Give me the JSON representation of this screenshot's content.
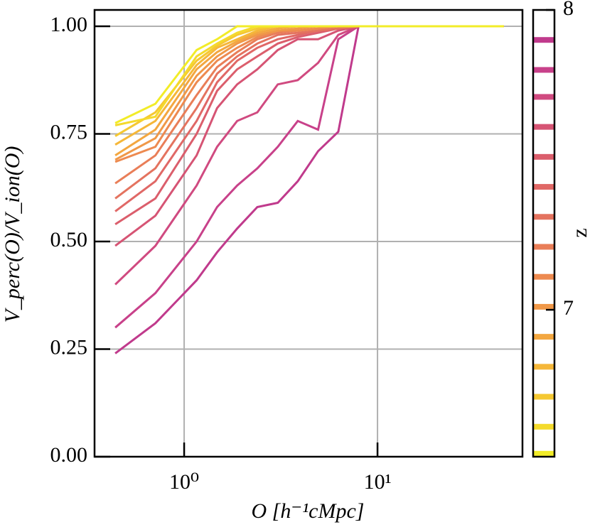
{
  "chart_data": {
    "type": "line",
    "xlabel": "O [h⁻¹cMpc]",
    "ylabel": "V_perc(O)/V_ion(O)",
    "x": [
      0.44,
      0.71,
      1.16,
      1.48,
      1.88,
      2.39,
      3.05,
      3.87,
      4.93,
      6.27,
      7.98,
      45
    ],
    "xlog": true,
    "xlim": [
      0.344,
      56.2
    ],
    "xticks": [
      {
        "value": 1,
        "label": "10⁰"
      },
      {
        "value": 10,
        "label": "10¹"
      }
    ],
    "ylim": [
      0,
      1.038
    ],
    "yticks": [
      {
        "value": 0,
        "label": "0.00"
      },
      {
        "value": 0.25,
        "label": "0.25"
      },
      {
        "value": 0.5,
        "label": "0.50"
      },
      {
        "value": 0.75,
        "label": "0.75"
      },
      {
        "value": 1,
        "label": "1.00"
      }
    ],
    "grid": true,
    "colorbar": {
      "label": "z",
      "clim": [
        6.51,
        8.0
      ],
      "ticks": [
        7,
        8
      ]
    },
    "series": [
      {
        "z": 7.9,
        "color": "#c03a8c",
        "values": [
          0.24,
          0.31,
          0.41,
          0.475,
          0.53,
          0.58,
          0.59,
          0.64,
          0.71,
          0.755,
          1.0,
          1.0
        ]
      },
      {
        "z": 7.8,
        "color": "#c8418a",
        "values": [
          0.3,
          0.38,
          0.5,
          0.58,
          0.63,
          0.67,
          0.72,
          0.78,
          0.76,
          0.97,
          1.0,
          1.0
        ]
      },
      {
        "z": 7.71,
        "color": "#d04a80",
        "values": [
          0.4,
          0.49,
          0.63,
          0.72,
          0.78,
          0.8,
          0.865,
          0.875,
          0.915,
          0.98,
          1.0,
          1.0
        ]
      },
      {
        "z": 7.61,
        "color": "#d65474",
        "values": [
          0.49,
          0.56,
          0.7,
          0.81,
          0.865,
          0.9,
          0.945,
          0.97,
          0.97,
          0.99,
          1.0,
          1.0
        ]
      },
      {
        "z": 7.51,
        "color": "#db5e6c",
        "values": [
          0.54,
          0.6,
          0.75,
          0.85,
          0.9,
          0.93,
          0.96,
          0.975,
          0.985,
          0.995,
          1.0,
          1.0
        ]
      },
      {
        "z": 7.41,
        "color": "#e06866",
        "values": [
          0.57,
          0.64,
          0.78,
          0.87,
          0.92,
          0.95,
          0.97,
          0.98,
          0.99,
          0.995,
          1.0,
          1.0
        ]
      },
      {
        "z": 7.31,
        "color": "#e4735f",
        "values": [
          0.6,
          0.67,
          0.81,
          0.89,
          0.93,
          0.96,
          0.98,
          0.985,
          0.99,
          0.995,
          1.0,
          1.0
        ]
      },
      {
        "z": 7.21,
        "color": "#e97e58",
        "values": [
          0.635,
          0.7,
          0.84,
          0.905,
          0.94,
          0.97,
          0.985,
          0.99,
          0.995,
          1.0,
          1.0,
          1.0
        ]
      },
      {
        "z": 7.11,
        "color": "#ed8a50",
        "values": [
          0.685,
          0.72,
          0.87,
          0.92,
          0.95,
          0.975,
          0.99,
          0.99,
          0.995,
          1.0,
          1.0,
          1.0
        ]
      },
      {
        "z": 7.01,
        "color": "#f09848",
        "values": [
          0.69,
          0.74,
          0.885,
          0.93,
          0.96,
          0.98,
          0.99,
          0.995,
          1.0,
          1.0,
          1.0,
          1.0
        ]
      },
      {
        "z": 6.91,
        "color": "#f3a740",
        "values": [
          0.7,
          0.76,
          0.9,
          0.94,
          0.965,
          0.985,
          0.995,
          1.0,
          1.0,
          1.0,
          1.0,
          1.0
        ]
      },
      {
        "z": 6.81,
        "color": "#f5b739",
        "values": [
          0.725,
          0.78,
          0.91,
          0.95,
          0.97,
          0.99,
          1.0,
          1.0,
          1.0,
          1.0,
          1.0,
          1.0
        ]
      },
      {
        "z": 6.71,
        "color": "#f5c832",
        "values": [
          0.745,
          0.8,
          0.92,
          0.955,
          0.98,
          0.995,
          1.0,
          1.0,
          1.0,
          1.0,
          1.0,
          1.0
        ]
      },
      {
        "z": 6.61,
        "color": "#f4da2c",
        "values": [
          0.77,
          0.79,
          0.93,
          0.96,
          0.985,
          1.0,
          1.0,
          1.0,
          1.0,
          1.0,
          1.0,
          1.0
        ]
      },
      {
        "z": 6.52,
        "color": "#f2ec28",
        "values": [
          0.775,
          0.82,
          0.945,
          0.97,
          1.0,
          1.0,
          1.0,
          1.0,
          1.0,
          1.0,
          1.0,
          1.0
        ]
      }
    ]
  }
}
